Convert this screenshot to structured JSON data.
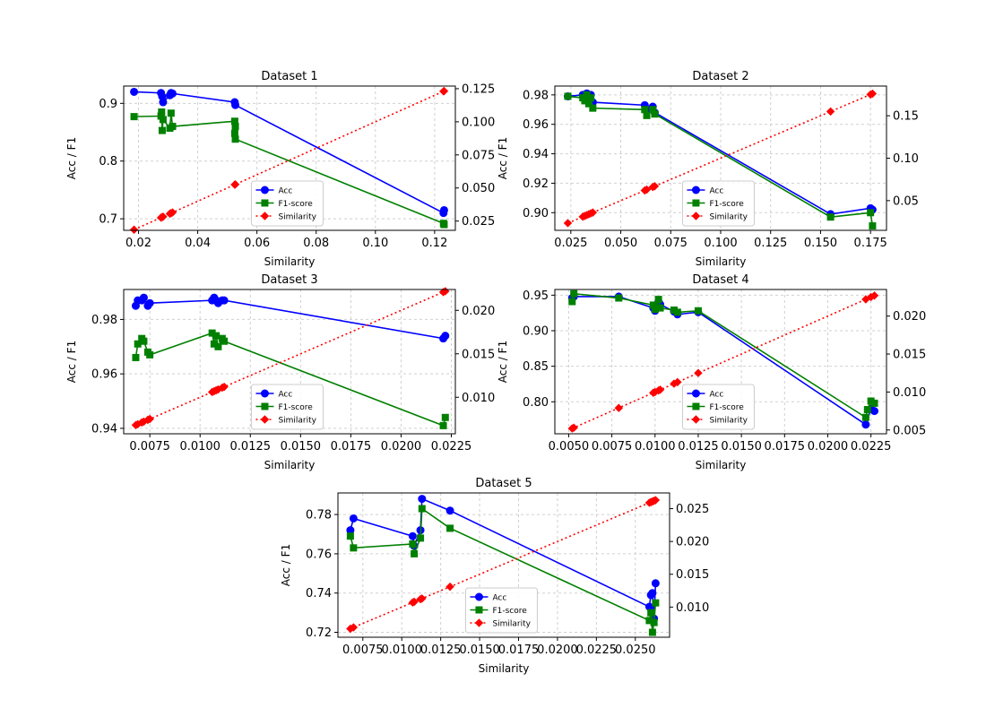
{
  "chart_data": [
    {
      "type": "line",
      "title": "Dataset 1",
      "xlabel": "Similarity",
      "ylabel": "Acc / F1",
      "xlim": [
        0.015,
        0.127
      ],
      "ylim": [
        0.68,
        0.93
      ],
      "y2lim": [
        0.018,
        0.127
      ],
      "xticks": [
        0.02,
        0.04,
        0.06,
        0.08,
        0.1,
        0.12
      ],
      "xtick_labels": [
        "0.02",
        "0.04",
        "0.06",
        "0.08",
        "0.10",
        "0.12"
      ],
      "yticks": [
        0.7,
        0.8,
        0.9
      ],
      "ytick_labels": [
        "0.7",
        "0.8",
        "0.9"
      ],
      "y2ticks": [
        0.025,
        0.05,
        0.075,
        0.1,
        0.125
      ],
      "y2tick_labels": [
        "0.025",
        "0.050",
        "0.075",
        "0.100",
        "0.125"
      ],
      "grid": true,
      "legend": "lower-center-right",
      "series": [
        {
          "name": "Acc",
          "axis": "left",
          "color": "#0000ff",
          "marker": "circle",
          "linestyle": "solid",
          "x": [
            0.0185,
            0.0276,
            0.028,
            0.0283,
            0.0306,
            0.031,
            0.0315,
            0.0525,
            0.0527,
            0.123,
            0.1232
          ],
          "y": [
            0.92,
            0.918,
            0.912,
            0.902,
            0.914,
            0.918,
            0.917,
            0.902,
            0.897,
            0.71,
            0.715
          ]
        },
        {
          "name": "F1-score",
          "axis": "left",
          "color": "#008000",
          "marker": "square",
          "linestyle": "solid",
          "x": [
            0.0185,
            0.0276,
            0.0278,
            0.028,
            0.0283,
            0.0306,
            0.031,
            0.0315,
            0.0525,
            0.0527,
            0.0525,
            0.0527,
            0.123,
            0.1232
          ],
          "y": [
            0.877,
            0.878,
            0.885,
            0.853,
            0.872,
            0.857,
            0.883,
            0.86,
            0.869,
            0.86,
            0.848,
            0.838,
            0.692,
            0.69
          ]
        },
        {
          "name": "Similarity",
          "axis": "right",
          "color": "#ff0000",
          "marker": "diamond",
          "linestyle": "dotted",
          "x": [
            0.0185,
            0.0276,
            0.028,
            0.0283,
            0.0306,
            0.031,
            0.0315,
            0.0525,
            0.0527,
            0.123,
            0.1232
          ],
          "y": [
            0.0185,
            0.0276,
            0.028,
            0.0283,
            0.0306,
            0.031,
            0.0315,
            0.0525,
            0.0527,
            0.123,
            0.1232
          ]
        }
      ]
    },
    {
      "type": "line",
      "title": "Dataset 2",
      "xlabel": "Similarity",
      "ylabel": "Acc / F1",
      "xlim": [
        0.017,
        0.183
      ],
      "ylim": [
        0.888,
        0.986
      ],
      "y2lim": [
        0.015,
        0.185
      ],
      "xticks": [
        0.025,
        0.05,
        0.075,
        0.1,
        0.125,
        0.15,
        0.175
      ],
      "xtick_labels": [
        "0.025",
        "0.050",
        "0.075",
        "0.100",
        "0.125",
        "0.150",
        "0.175"
      ],
      "yticks": [
        0.9,
        0.92,
        0.94,
        0.96,
        0.98
      ],
      "ytick_labels": [
        "0.90",
        "0.92",
        "0.94",
        "0.96",
        "0.98"
      ],
      "y2ticks": [
        0.05,
        0.1,
        0.15
      ],
      "y2tick_labels": [
        "0.05",
        "0.10",
        "0.15"
      ],
      "grid": true,
      "legend": "lower-center-right",
      "series": [
        {
          "name": "Acc",
          "axis": "left",
          "color": "#0000ff",
          "marker": "circle",
          "linestyle": "solid",
          "x": [
            0.0235,
            0.031,
            0.032,
            0.033,
            0.034,
            0.035,
            0.036,
            0.062,
            0.063,
            0.066,
            0.067,
            0.155,
            0.175,
            0.176
          ],
          "y": [
            0.979,
            0.98,
            0.978,
            0.981,
            0.977,
            0.98,
            0.975,
            0.973,
            0.97,
            0.972,
            0.968,
            0.899,
            0.903,
            0.902
          ]
        },
        {
          "name": "F1-score",
          "axis": "left",
          "color": "#008000",
          "marker": "square",
          "linestyle": "solid",
          "x": [
            0.0235,
            0.031,
            0.032,
            0.033,
            0.034,
            0.035,
            0.036,
            0.062,
            0.063,
            0.066,
            0.067,
            0.155,
            0.175,
            0.176
          ],
          "y": [
            0.979,
            0.978,
            0.976,
            0.98,
            0.974,
            0.978,
            0.971,
            0.97,
            0.966,
            0.97,
            0.967,
            0.897,
            0.9,
            0.891
          ]
        },
        {
          "name": "Similarity",
          "axis": "right",
          "color": "#ff0000",
          "marker": "diamond",
          "linestyle": "dotted",
          "x": [
            0.0235,
            0.031,
            0.032,
            0.033,
            0.034,
            0.035,
            0.036,
            0.062,
            0.063,
            0.066,
            0.067,
            0.155,
            0.175,
            0.176
          ],
          "y": [
            0.0235,
            0.031,
            0.032,
            0.033,
            0.034,
            0.035,
            0.036,
            0.062,
            0.063,
            0.066,
            0.067,
            0.155,
            0.175,
            0.176
          ]
        }
      ]
    },
    {
      "type": "line",
      "title": "Dataset 3",
      "xlabel": "Similarity",
      "ylabel": "Acc / F1",
      "xlim": [
        0.0062,
        0.0227
      ],
      "ylim": [
        0.938,
        0.991
      ],
      "y2lim": [
        0.0058,
        0.0224
      ],
      "xticks": [
        0.0075,
        0.01,
        0.0125,
        0.015,
        0.0175,
        0.02,
        0.0225
      ],
      "xtick_labels": [
        "0.0075",
        "0.0100",
        "0.0125",
        "0.0150",
        "0.0175",
        "0.0200",
        "0.0225"
      ],
      "yticks": [
        0.94,
        0.96,
        0.98
      ],
      "ytick_labels": [
        "0.94",
        "0.96",
        "0.98"
      ],
      "y2ticks": [
        0.01,
        0.015,
        0.02
      ],
      "y2tick_labels": [
        "0.010",
        "0.015",
        "0.020"
      ],
      "grid": true,
      "legend": "lower-center-right",
      "series": [
        {
          "name": "Acc",
          "axis": "left",
          "color": "#0000ff",
          "marker": "circle",
          "linestyle": "solid",
          "x": [
            0.0068,
            0.0069,
            0.0071,
            0.0072,
            0.0074,
            0.0075,
            0.0106,
            0.0107,
            0.0108,
            0.0109,
            0.0111,
            0.0112,
            0.0221,
            0.0222
          ],
          "y": [
            0.985,
            0.987,
            0.987,
            0.988,
            0.985,
            0.986,
            0.987,
            0.988,
            0.987,
            0.986,
            0.987,
            0.987,
            0.973,
            0.974
          ]
        },
        {
          "name": "F1-score",
          "axis": "left",
          "color": "#008000",
          "marker": "square",
          "linestyle": "solid",
          "x": [
            0.0068,
            0.0069,
            0.0071,
            0.0072,
            0.0074,
            0.0075,
            0.0106,
            0.0107,
            0.0108,
            0.0109,
            0.0111,
            0.0112,
            0.0221,
            0.0222
          ],
          "y": [
            0.966,
            0.971,
            0.973,
            0.972,
            0.968,
            0.967,
            0.975,
            0.971,
            0.974,
            0.97,
            0.973,
            0.972,
            0.941,
            0.944
          ]
        },
        {
          "name": "Similarity",
          "axis": "right",
          "color": "#ff0000",
          "marker": "diamond",
          "linestyle": "dotted",
          "x": [
            0.0068,
            0.0069,
            0.0071,
            0.0072,
            0.0074,
            0.0075,
            0.0106,
            0.0107,
            0.0108,
            0.0109,
            0.0111,
            0.0112,
            0.0221,
            0.0222
          ],
          "y": [
            0.0068,
            0.0069,
            0.0071,
            0.0072,
            0.0074,
            0.0075,
            0.0106,
            0.0107,
            0.0108,
            0.0109,
            0.0111,
            0.0112,
            0.0221,
            0.0222
          ]
        }
      ]
    },
    {
      "type": "line",
      "title": "Dataset 4",
      "xlabel": "Similarity",
      "ylabel": "Acc / F1",
      "xlim": [
        0.0042,
        0.0234
      ],
      "ylim": [
        0.755,
        0.958
      ],
      "y2lim": [
        0.0045,
        0.0235
      ],
      "xticks": [
        0.005,
        0.0075,
        0.01,
        0.0125,
        0.015,
        0.0175,
        0.02,
        0.0225
      ],
      "xtick_labels": [
        "0.0050",
        "0.0075",
        "0.0100",
        "0.0125",
        "0.0150",
        "0.0175",
        "0.0200",
        "0.0225"
      ],
      "yticks": [
        0.8,
        0.85,
        0.9,
        0.95
      ],
      "ytick_labels": [
        "0.80",
        "0.85",
        "0.90",
        "0.95"
      ],
      "y2ticks": [
        0.005,
        0.01,
        0.015,
        0.02
      ],
      "y2tick_labels": [
        "0.005",
        "0.010",
        "0.015",
        "0.020"
      ],
      "grid": true,
      "legend": "lower-center-right",
      "series": [
        {
          "name": "Acc",
          "axis": "left",
          "color": "#0000ff",
          "marker": "circle",
          "linestyle": "solid",
          "x": [
            0.0052,
            0.0053,
            0.0079,
            0.0099,
            0.01,
            0.0102,
            0.0103,
            0.0111,
            0.0113,
            0.0125,
            0.0222,
            0.0225,
            0.0227
          ],
          "y": [
            0.946,
            0.948,
            0.948,
            0.932,
            0.928,
            0.941,
            0.937,
            0.927,
            0.923,
            0.926,
            0.768,
            0.79,
            0.787
          ]
        },
        {
          "name": "F1-score",
          "axis": "left",
          "color": "#008000",
          "marker": "square",
          "linestyle": "solid",
          "x": [
            0.0052,
            0.0053,
            0.0079,
            0.0099,
            0.01,
            0.0102,
            0.0103,
            0.0111,
            0.0113,
            0.0125,
            0.0222,
            0.0223,
            0.0225,
            0.0227
          ],
          "y": [
            0.941,
            0.952,
            0.946,
            0.936,
            0.93,
            0.944,
            0.932,
            0.929,
            0.926,
            0.928,
            0.778,
            0.789,
            0.801,
            0.798
          ]
        },
        {
          "name": "Similarity",
          "axis": "right",
          "color": "#ff0000",
          "marker": "diamond",
          "linestyle": "dotted",
          "x": [
            0.0052,
            0.0053,
            0.0079,
            0.0099,
            0.01,
            0.0102,
            0.0103,
            0.0111,
            0.0113,
            0.0125,
            0.0222,
            0.0225,
            0.0227
          ],
          "y": [
            0.0052,
            0.0053,
            0.0079,
            0.0099,
            0.01,
            0.0102,
            0.0103,
            0.0111,
            0.0113,
            0.0125,
            0.0222,
            0.0225,
            0.0227
          ]
        }
      ]
    },
    {
      "type": "line",
      "title": "Dataset 5",
      "xlabel": "Similarity",
      "ylabel": "Acc / F1",
      "xlim": [
        0.0059,
        0.0272
      ],
      "ylim": [
        0.7175,
        0.791
      ],
      "y2lim": [
        0.0054,
        0.0274
      ],
      "xticks": [
        0.0075,
        0.01,
        0.0125,
        0.015,
        0.0175,
        0.02,
        0.0225,
        0.025
      ],
      "xtick_labels": [
        "0.0075",
        "0.0100",
        "0.0125",
        "0.0150",
        "0.0175",
        "0.0200",
        "0.0225",
        "0.0250"
      ],
      "yticks": [
        0.72,
        0.74,
        0.76,
        0.78
      ],
      "ytick_labels": [
        "0.72",
        "0.74",
        "0.76",
        "0.78"
      ],
      "y2ticks": [
        0.01,
        0.015,
        0.02,
        0.025
      ],
      "y2tick_labels": [
        "0.010",
        "0.015",
        "0.020",
        "0.025"
      ],
      "grid": true,
      "legend": "lower-center",
      "series": [
        {
          "name": "Acc",
          "axis": "left",
          "color": "#0000ff",
          "marker": "circle",
          "linestyle": "solid",
          "x": [
            0.0067,
            0.0069,
            0.0107,
            0.0108,
            0.0112,
            0.0113,
            0.0131,
            0.0259,
            0.026,
            0.0261,
            0.0262,
            0.0263
          ],
          "y": [
            0.772,
            0.778,
            0.769,
            0.764,
            0.772,
            0.788,
            0.782,
            0.733,
            0.739,
            0.74,
            0.727,
            0.745
          ]
        },
        {
          "name": "F1-score",
          "axis": "left",
          "color": "#008000",
          "marker": "square",
          "linestyle": "solid",
          "x": [
            0.0067,
            0.0069,
            0.0107,
            0.0108,
            0.0112,
            0.0113,
            0.0131,
            0.0259,
            0.026,
            0.0261,
            0.0262,
            0.0263
          ],
          "y": [
            0.769,
            0.763,
            0.765,
            0.76,
            0.768,
            0.783,
            0.773,
            0.726,
            0.73,
            0.72,
            0.725,
            0.735
          ]
        },
        {
          "name": "Similarity",
          "axis": "right",
          "color": "#ff0000",
          "marker": "diamond",
          "linestyle": "dotted",
          "x": [
            0.0067,
            0.0069,
            0.0107,
            0.0108,
            0.0112,
            0.0113,
            0.0131,
            0.0259,
            0.026,
            0.0261,
            0.0262,
            0.0263
          ],
          "y": [
            0.0067,
            0.0069,
            0.0107,
            0.0108,
            0.0112,
            0.0113,
            0.0131,
            0.0259,
            0.026,
            0.0261,
            0.0262,
            0.0263
          ]
        }
      ]
    }
  ]
}
